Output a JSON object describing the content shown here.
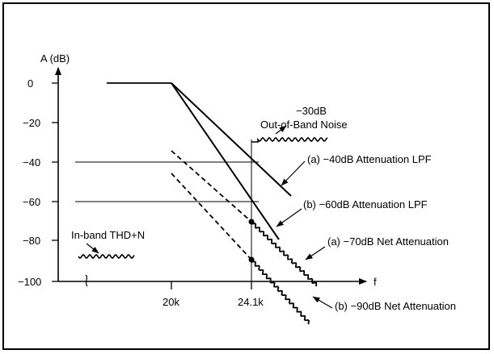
{
  "diagram": {
    "y_axis": {
      "label": "A (dB)",
      "ticks": [
        "0",
        "−20",
        "−40",
        "−60",
        "−80",
        "−100"
      ]
    },
    "x_axis": {
      "label": "f",
      "ticks": [
        "20k",
        "24.1k"
      ]
    },
    "annotations": {
      "noise_level": "−30dB",
      "noise_label": "Out-of-Band Noise",
      "inband": "In-band THD+N",
      "lpf_a": "(a) −40dB Attenuation LPF",
      "lpf_b": "(b) −60dB Attenuation LPF",
      "net_a": "(a) −70dB Net Attenuation",
      "net_b": "(b) −90dB Net Attenuation"
    },
    "colors": {
      "ink": "#000000",
      "background": "#ffffff"
    }
  }
}
